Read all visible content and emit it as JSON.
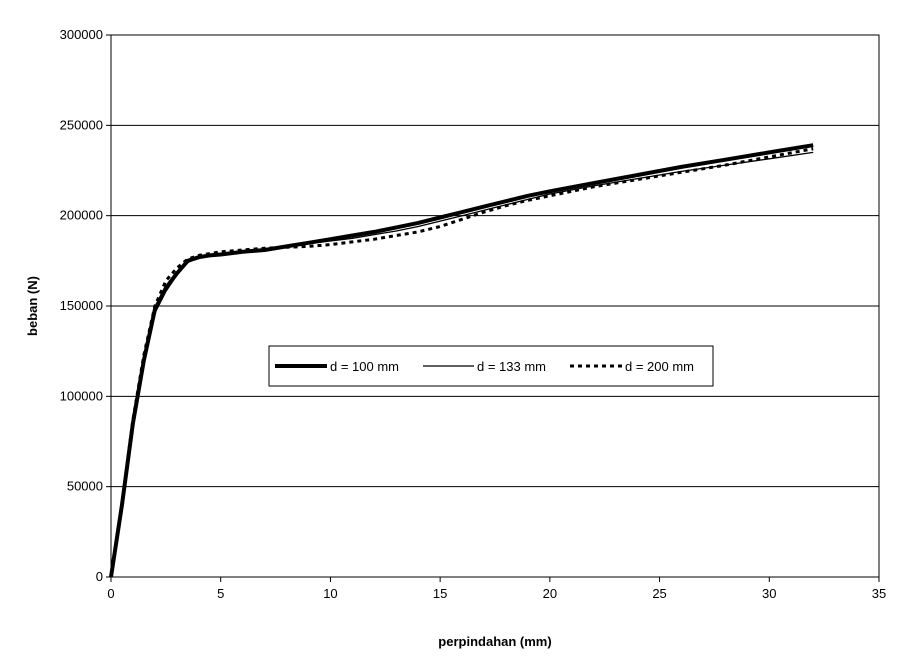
{
  "chart_data": {
    "type": "line",
    "title": "",
    "xlabel": "perpindahan (mm)",
    "ylabel": "beban (N)",
    "xlim": [
      0,
      35
    ],
    "ylim": [
      0,
      300000
    ],
    "xticks": [
      0,
      5,
      10,
      15,
      20,
      25,
      30,
      35
    ],
    "yticks": [
      0,
      50000,
      100000,
      150000,
      200000,
      250000,
      300000
    ],
    "xtick_labels": [
      "0",
      "5",
      "10",
      "15",
      "20",
      "25",
      "30",
      "35"
    ],
    "ytick_labels": [
      "0",
      "50000",
      "100000",
      "150000",
      "200000",
      "250000",
      "300000"
    ],
    "grid": "horizontal",
    "legend_position": "center",
    "series": [
      {
        "name": "d = 100 mm",
        "style": "thick-solid",
        "color": "#000000",
        "x": [
          0,
          0.5,
          1.0,
          1.5,
          2.0,
          2.5,
          3.0,
          3.5,
          4.0,
          4.5,
          5,
          6,
          7,
          8,
          9,
          10,
          11,
          12,
          13,
          14,
          15,
          16,
          17,
          18,
          19,
          20,
          22,
          24,
          26,
          28,
          30,
          32
        ],
        "y": [
          0,
          40000,
          85000,
          120000,
          148000,
          160000,
          168000,
          175000,
          177000,
          178000,
          178500,
          180000,
          181000,
          183000,
          185000,
          187000,
          189000,
          191000,
          193500,
          196000,
          199000,
          202000,
          205000,
          208000,
          211000,
          213500,
          218000,
          222500,
          227000,
          231000,
          235000,
          239000
        ]
      },
      {
        "name": "d = 133 mm",
        "style": "thin-solid",
        "color": "#000000",
        "x": [
          0,
          0.5,
          1.0,
          1.5,
          2.0,
          2.5,
          3.0,
          3.5,
          4.0,
          4.5,
          5,
          6,
          7,
          8,
          9,
          10,
          11,
          12,
          13,
          14,
          15,
          16,
          17,
          18,
          19,
          20,
          22,
          24,
          26,
          28,
          30,
          32
        ],
        "y": [
          0,
          39000,
          84000,
          118000,
          146000,
          158000,
          167000,
          174000,
          177000,
          178000,
          179000,
          180500,
          181500,
          183000,
          184500,
          186000,
          187500,
          189500,
          191500,
          194000,
          197000,
          200000,
          203000,
          206000,
          209000,
          212000,
          216500,
          220500,
          224500,
          228000,
          231500,
          235000
        ]
      },
      {
        "name": "d = 200 mm",
        "style": "dotted",
        "color": "#000000",
        "x": [
          0,
          0.5,
          1.0,
          1.5,
          2.0,
          2.5,
          3.0,
          3.5,
          4.0,
          4.5,
          5,
          6,
          7,
          8,
          9,
          10,
          11,
          12,
          13,
          14,
          15,
          16,
          17,
          18,
          19,
          20,
          22,
          24,
          26,
          28,
          30,
          32
        ],
        "y": [
          0,
          41000,
          87000,
          123000,
          150000,
          164000,
          171000,
          176000,
          178000,
          179000,
          180000,
          181000,
          182000,
          182500,
          183000,
          184000,
          185500,
          187000,
          189000,
          191000,
          194000,
          198000,
          202000,
          205500,
          208500,
          211000,
          216000,
          220000,
          224000,
          228000,
          232500,
          237000
        ]
      }
    ]
  }
}
